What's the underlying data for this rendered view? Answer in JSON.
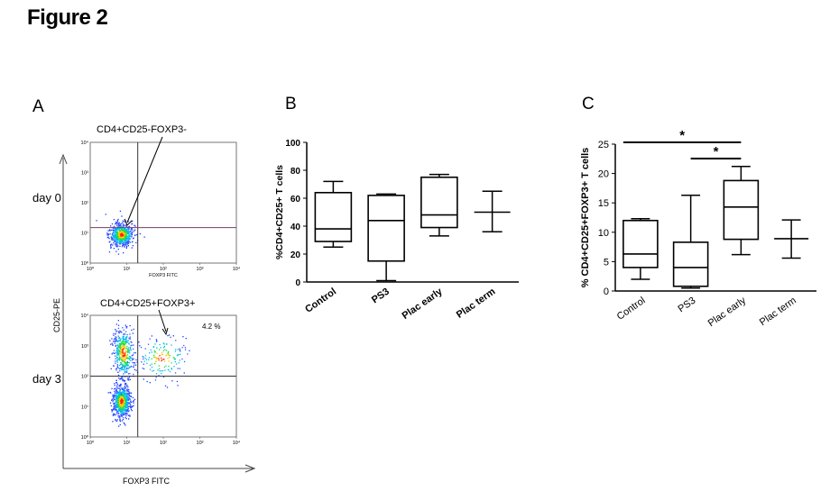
{
  "figure_title": "Figure 2",
  "panels": {
    "a": "A",
    "b": "B",
    "c": "C"
  },
  "chart_data": [
    {
      "panel": "A",
      "type": "scatter",
      "title": "",
      "xlabel": "FOXP3 FITC",
      "ylabel": "CD25-PE",
      "rows": [
        "day 0",
        "day 3"
      ],
      "plots": [
        {
          "row": "day 0",
          "x_scale": "log",
          "y_scale": "log",
          "xlim": [
            1,
            10000
          ],
          "ylim": [
            1,
            10000
          ],
          "x_ticks": [
            "10⁰",
            "10¹",
            "10²",
            "10³",
            "10⁴"
          ],
          "y_ticks": [
            "10⁰",
            "10¹",
            "10²",
            "10³",
            "10⁴"
          ],
          "inner_xlabel": "FOXP3 FITC",
          "gate_x": 20,
          "gate_y": 15,
          "population_centers": [
            {
              "x": 7,
              "y": 9
            }
          ],
          "annotation": "CD4+CD25-FOXP3-",
          "quadrant_label": ""
        },
        {
          "row": "day 3",
          "x_scale": "log",
          "y_scale": "log",
          "xlim": [
            1,
            10000
          ],
          "ylim": [
            1,
            10000
          ],
          "x_ticks": [
            "10⁰",
            "10¹",
            "10²",
            "10³",
            "10⁴"
          ],
          "y_ticks": [
            "10⁰",
            "10¹",
            "10²",
            "10³",
            "10⁴"
          ],
          "inner_xlabel": "",
          "gate_x": 20,
          "gate_y": 100,
          "population_centers": [
            {
              "x": 7,
              "y": 15
            },
            {
              "x": 8,
              "y": 600
            }
          ],
          "annotation": "CD4+CD25+FOXP3+",
          "quadrant_label": "4.2 %"
        }
      ]
    },
    {
      "panel": "B",
      "type": "box",
      "title": "",
      "ylabel": "%CD4+CD25+ T cells",
      "ylim": [
        0,
        100
      ],
      "yticks": [
        "0",
        "20",
        "40",
        "60",
        "80",
        "100"
      ],
      "categories": [
        "Control",
        "PS3",
        "Plac early",
        "Plac term"
      ],
      "boxes": [
        {
          "min": 25,
          "q1": 29,
          "median": 38,
          "q3": 64,
          "max": 72
        },
        {
          "min": 1,
          "q1": 15,
          "median": 44,
          "q3": 62,
          "max": 63
        },
        {
          "min": 33,
          "q1": 39,
          "median": 48,
          "q3": 75,
          "max": 77
        },
        {
          "min": 36,
          "q1": 50,
          "median": 50,
          "q3": 50,
          "max": 65
        }
      ]
    },
    {
      "panel": "C",
      "type": "box",
      "title": "",
      "ylabel": "%  CD4+CD25+FOXP3+ T cells",
      "ylim": [
        0,
        25
      ],
      "yticks": [
        "0",
        "5",
        "10",
        "15",
        "20",
        "25"
      ],
      "categories": [
        "Control",
        "PS3",
        "Plac early",
        "Plac term"
      ],
      "boxes": [
        {
          "min": 2,
          "q1": 4,
          "median": 6.3,
          "q3": 12,
          "max": 12.3
        },
        {
          "min": 0.5,
          "q1": 0.8,
          "median": 4,
          "q3": 8.3,
          "max": 16.3
        },
        {
          "min": 6.2,
          "q1": 8.8,
          "median": 14.3,
          "q3": 18.8,
          "max": 21.2
        },
        {
          "min": 5.6,
          "q1": 8.9,
          "median": 8.9,
          "q3": 8.9,
          "max": 12.1
        }
      ],
      "significance": [
        {
          "from": "Control",
          "to": "Plac early",
          "label": "*"
        },
        {
          "from": "PS3",
          "to": "Plac early",
          "label": "*"
        }
      ]
    }
  ]
}
